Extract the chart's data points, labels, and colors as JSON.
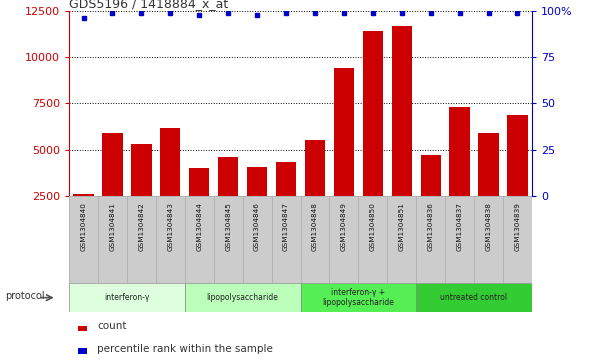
{
  "title": "GDS5196 / 1418884_x_at",
  "samples": [
    "GSM1304840",
    "GSM1304841",
    "GSM1304842",
    "GSM1304843",
    "GSM1304844",
    "GSM1304845",
    "GSM1304846",
    "GSM1304847",
    "GSM1304848",
    "GSM1304849",
    "GSM1304850",
    "GSM1304851",
    "GSM1304836",
    "GSM1304837",
    "GSM1304838",
    "GSM1304839"
  ],
  "counts": [
    2600,
    5900,
    5300,
    6200,
    4000,
    4600,
    4050,
    4350,
    5550,
    9400,
    11400,
    11700,
    4700,
    7300,
    5900,
    6900
  ],
  "percentile_ranks": [
    96,
    99,
    99,
    99,
    98,
    99,
    98,
    99,
    99,
    99,
    99,
    99,
    99,
    99,
    99,
    99
  ],
  "bar_color": "#cc0000",
  "dot_color": "#0000cc",
  "ylim_left": [
    2500,
    12500
  ],
  "ylim_right": [
    0,
    100
  ],
  "yticks_left": [
    2500,
    5000,
    7500,
    10000,
    12500
  ],
  "yticks_right": [
    0,
    25,
    50,
    75,
    100
  ],
  "groups": [
    {
      "label": "interferon-γ",
      "start": 0,
      "end": 4,
      "color": "#ddffdd"
    },
    {
      "label": "lipopolysaccharide",
      "start": 4,
      "end": 8,
      "color": "#bbffbb"
    },
    {
      "label": "interferon-γ +\nlipopolysaccharide",
      "start": 8,
      "end": 12,
      "color": "#55ee55"
    },
    {
      "label": "untreated control",
      "start": 12,
      "end": 16,
      "color": "#33cc33"
    }
  ],
  "protocol_label": "protocol",
  "title_color": "#333333",
  "background_color": "#ffffff",
  "plot_bg_color": "#ffffff",
  "grid_color": "#000000",
  "sample_bg_color": "#cccccc",
  "ylabel_left_color": "#cc0000",
  "ylabel_right_color": "#0000cc"
}
